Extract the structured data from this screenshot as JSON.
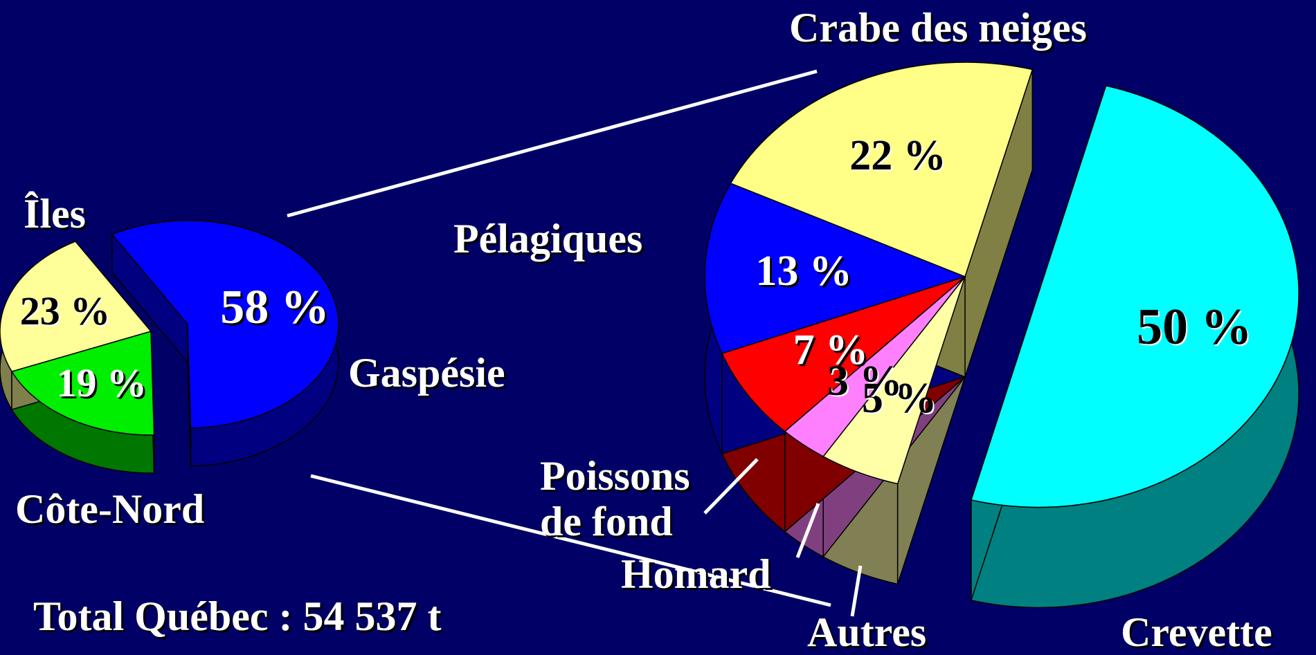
{
  "chart_data": [
    {
      "type": "pie",
      "categories": [
        "Gaspésie",
        "Côte-Nord",
        "Îles"
      ],
      "values": [
        58,
        19,
        23
      ],
      "value_labels": [
        "58 %",
        "19 %",
        "23 %"
      ],
      "colors": [
        "#0000ff",
        "#00ee00",
        "#ffff99"
      ],
      "annotations": [
        "Total Québec : 54 537 t"
      ]
    },
    {
      "type": "pie",
      "categories": [
        "Crevette",
        "Autres",
        "Homard",
        "Poissons de fond",
        "Pélagiques",
        "Crabe des neiges"
      ],
      "values": [
        50,
        5,
        3,
        7,
        13,
        22
      ],
      "value_labels": [
        "50 %",
        "5 %",
        "3 %",
        "7 %",
        "13 %",
        "22 %"
      ],
      "colors": [
        "#00ffff",
        "#ffffa8",
        "#ff80ff",
        "#ff0000",
        "#0000ff",
        "#ffff88"
      ]
    }
  ]
}
